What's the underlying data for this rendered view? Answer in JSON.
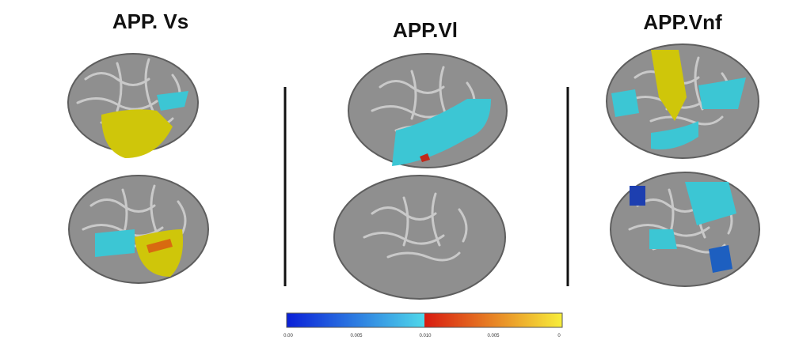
{
  "panels": [
    {
      "title": "APP. Vs"
    },
    {
      "title": "APP.Vl"
    },
    {
      "title": "APP.Vnf"
    }
  ],
  "colorbar": {
    "labels": [
      "0.00",
      "0.005",
      "0.010",
      "0.005",
      "0"
    ]
  }
}
